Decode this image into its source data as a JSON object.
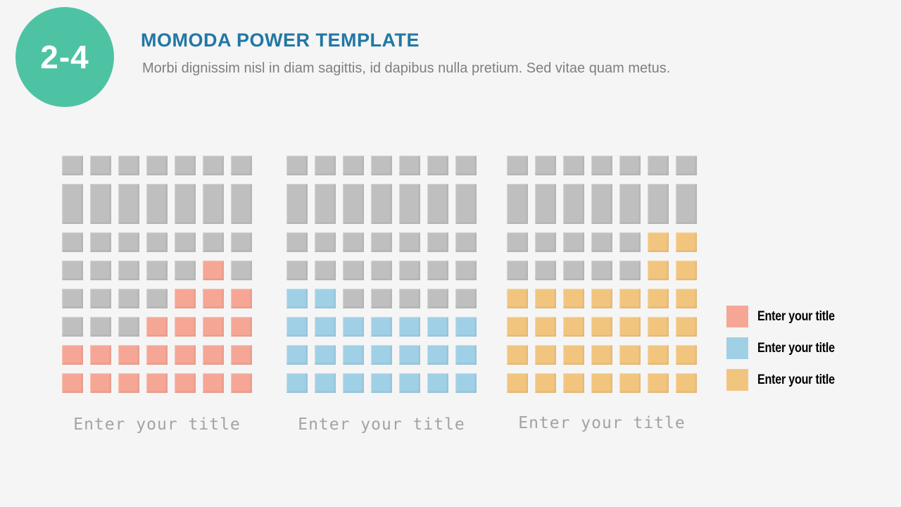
{
  "badge": {
    "label": "2-4",
    "color": "#4ec3a4"
  },
  "header": {
    "title": "MOMODA POWER TEMPLATE",
    "title_color": "#2277a5",
    "subtitle": "Morbi dignissim nisl in diam sagittis, id dapibus nulla pretium. Sed vitae quam metus."
  },
  "colors": {
    "background": "#f5f5f5",
    "base_gray": "#bfbfbf",
    "salmon": "#f6a695",
    "blue": "#a0d0e6",
    "orange": "#f2c57e"
  },
  "chart_data": {
    "type": "heatmap",
    "subtype": "waffle",
    "grid": {
      "columns": 7,
      "rows": 8,
      "total_cells_per_chart": 56,
      "tall_row_index": 1
    },
    "charts": [
      {
        "caption": "Enter your title",
        "highlight_name": "salmon",
        "highlight_color": "#f6a695",
        "base_color": "#bfbfbf",
        "highlighted_cells": 22,
        "pattern": [
          [
            0,
            0,
            0,
            0,
            0,
            0,
            0
          ],
          [
            0,
            0,
            0,
            0,
            0,
            0,
            0
          ],
          [
            0,
            0,
            0,
            0,
            0,
            0,
            0
          ],
          [
            0,
            0,
            0,
            0,
            0,
            1,
            0
          ],
          [
            0,
            0,
            0,
            0,
            1,
            1,
            1
          ],
          [
            0,
            0,
            0,
            1,
            1,
            1,
            1
          ],
          [
            1,
            1,
            1,
            1,
            1,
            1,
            1
          ],
          [
            1,
            1,
            1,
            1,
            1,
            1,
            1
          ]
        ]
      },
      {
        "caption": "Enter your title",
        "highlight_name": "blue",
        "highlight_color": "#a0d0e6",
        "base_color": "#bfbfbf",
        "highlighted_cells": 23,
        "pattern": [
          [
            0,
            0,
            0,
            0,
            0,
            0,
            0
          ],
          [
            0,
            0,
            0,
            0,
            0,
            0,
            0
          ],
          [
            0,
            0,
            0,
            0,
            0,
            0,
            0
          ],
          [
            0,
            0,
            0,
            0,
            0,
            0,
            0
          ],
          [
            1,
            1,
            0,
            0,
            0,
            0,
            0
          ],
          [
            1,
            1,
            1,
            1,
            1,
            1,
            1
          ],
          [
            1,
            1,
            1,
            1,
            1,
            1,
            1
          ],
          [
            1,
            1,
            1,
            1,
            1,
            1,
            1
          ]
        ]
      },
      {
        "caption": "Enter your title",
        "highlight_name": "orange",
        "highlight_color": "#f2c57e",
        "base_color": "#bfbfbf",
        "highlighted_cells": 32,
        "pattern": [
          [
            0,
            0,
            0,
            0,
            0,
            0,
            0
          ],
          [
            0,
            0,
            0,
            0,
            0,
            0,
            0
          ],
          [
            0,
            0,
            0,
            0,
            0,
            1,
            1
          ],
          [
            0,
            0,
            0,
            0,
            0,
            1,
            1
          ],
          [
            1,
            1,
            1,
            1,
            1,
            1,
            1
          ],
          [
            1,
            1,
            1,
            1,
            1,
            1,
            1
          ],
          [
            1,
            1,
            1,
            1,
            1,
            1,
            1
          ],
          [
            1,
            1,
            1,
            1,
            1,
            1,
            1
          ]
        ]
      }
    ],
    "legend_position": "right"
  },
  "legend": {
    "items": [
      {
        "label": "Enter your title",
        "color": "#f6a695"
      },
      {
        "label": "Enter your title",
        "color": "#a0d0e6"
      },
      {
        "label": "Enter your title",
        "color": "#f2c57e"
      }
    ]
  }
}
